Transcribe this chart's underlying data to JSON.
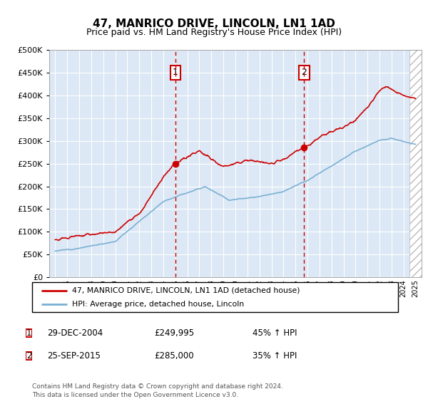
{
  "title": "47, MANRICO DRIVE, LINCOLN, LN1 1AD",
  "subtitle": "Price paid vs. HM Land Registry's House Price Index (HPI)",
  "legend_line1": "47, MANRICO DRIVE, LINCOLN, LN1 1AD (detached house)",
  "legend_line2": "HPI: Average price, detached house, Lincoln",
  "annotation1_label": "1",
  "annotation1_date": "29-DEC-2004",
  "annotation1_price": "£249,995",
  "annotation1_hpi": "45% ↑ HPI",
  "annotation1_year": 2004.99,
  "annotation1_value": 249995,
  "annotation2_label": "2",
  "annotation2_date": "25-SEP-2015",
  "annotation2_price": "£285,000",
  "annotation2_hpi": "35% ↑ HPI",
  "annotation2_year": 2015.73,
  "annotation2_value": 285000,
  "footer": "Contains HM Land Registry data © Crown copyright and database right 2024.\nThis data is licensed under the Open Government Licence v3.0.",
  "red_color": "#cc0000",
  "blue_color": "#7ab0d4",
  "bg_color": "#dce8f5",
  "ylim": [
    0,
    500000
  ],
  "xlim_start": 1994.5,
  "xlim_end": 2025.5
}
